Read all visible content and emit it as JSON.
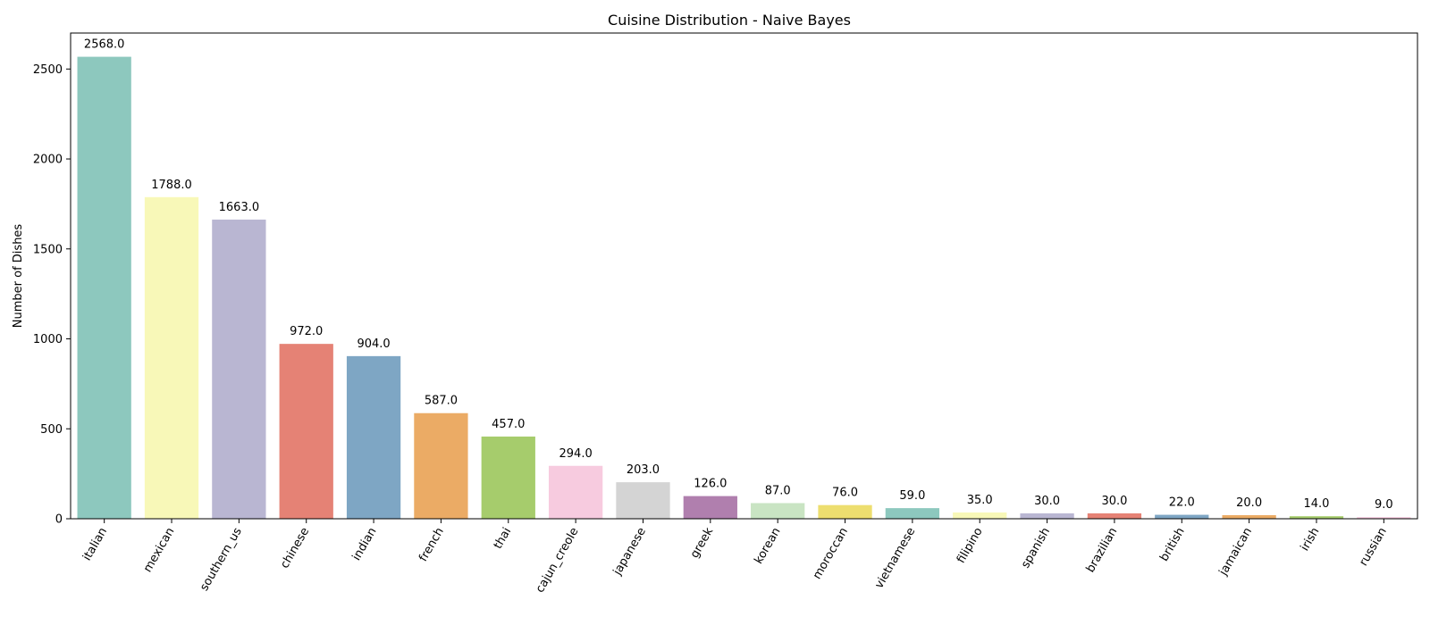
{
  "chart_data": {
    "type": "bar",
    "title": "Cuisine Distribution - Naive Bayes",
    "xlabel": "",
    "ylabel": "Number of Dishes",
    "ylim": [
      0,
      2700
    ],
    "yticks": [
      0,
      500,
      1000,
      1500,
      2000,
      2500
    ],
    "grid": false,
    "legend": "none",
    "categories": [
      "italian",
      "mexican",
      "southern_us",
      "chinese",
      "indian",
      "french",
      "thai",
      "cajun_creole",
      "japanese",
      "greek",
      "korean",
      "moroccan",
      "vietnamese",
      "filipino",
      "spanish",
      "brazilian",
      "british",
      "jamaican",
      "irish",
      "russian"
    ],
    "values": [
      2568,
      1788,
      1663,
      972,
      904,
      587,
      457,
      294,
      203,
      126,
      87,
      76,
      59,
      35,
      30,
      30,
      22,
      20,
      14,
      9
    ],
    "data_labels": [
      "2568.0",
      "1788.0",
      "1663.0",
      "972.0",
      "904.0",
      "587.0",
      "457.0",
      "294.0",
      "203.0",
      "126.0",
      "87.0",
      "76.0",
      "59.0",
      "35.0",
      "30.0",
      "30.0",
      "22.0",
      "20.0",
      "14.0",
      "9.0"
    ],
    "colors": [
      "#8dc8be",
      "#f8f8b8",
      "#b9b6d2",
      "#e58275",
      "#7ea6c4",
      "#ebab65",
      "#a6cc6c",
      "#f7cbdf",
      "#d4d4d4",
      "#b07fae",
      "#c9e4c3",
      "#edde6f",
      "#8dc8be",
      "#f8f8b8",
      "#b9b6d2",
      "#e58275",
      "#7ea6c4",
      "#ebab65",
      "#a6cc6c",
      "#f7cbdf"
    ]
  }
}
